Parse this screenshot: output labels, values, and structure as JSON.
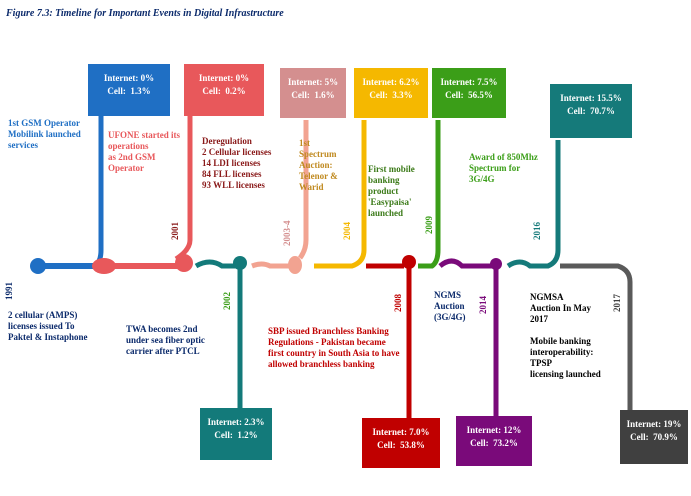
{
  "title": "Figure 7.3: Timeline for Important Events in Digital Infrastructure",
  "colors": {
    "c1991": "#1f6fc4",
    "c2001": "#e8585b",
    "c2002": "#137a7a",
    "c2003": "#f2a391",
    "c2004": "#f5b800",
    "c2008": "#c00000",
    "c2009": "#3b9e18",
    "c2014": "#7a0a7a",
    "c2016": "#157a7a",
    "c2017": "#5a5a5a",
    "cellbox2003": "#d48f8f",
    "cellbox2004": "#f5b800"
  },
  "years": {
    "y1991": "1991",
    "y2001": "2001",
    "y2002": "2002",
    "y2003": "2003-4",
    "y2004": "2004",
    "y2008": "2008",
    "y2009": "2009",
    "y2014": "2014",
    "y2016": "2016",
    "y2017": "2017"
  },
  "boxes": {
    "b1991": "Internet: 0%\nCell:  1.3%",
    "b2001": "Internet: 0%\nCell:  0.2%",
    "b2002": "Internet: 2.3%\nCell:  1.2%",
    "b2003": "Internet: 5%\nCell:  1.6%",
    "b2004": "Internet: 6.2%\nCell:  3.3%",
    "b2008": "Internet: 7.0%\nCell:  53.8%",
    "b2009": "Internet: 7.5%\nCell:  56.5%",
    "b2014": "Internet: 12%\nCell:  73.2%",
    "b2016": "Internet: 15.5%\nCell:  70.7%",
    "b2017": "Internet: 19%\nCell:  70.9%"
  },
  "events": {
    "e1991_top": "1st GSM Operator\nMobilink launched\nservices",
    "e1991_bottom": "2 cellular (AMPS)\nlicenses issued To\nPaktel & Instaphone",
    "e2001": "UFONE started its\noperations\nas 2nd GSM\nOperator",
    "e2002_top": "Deregulation\n2 Cellular licenses\n14 LDI licenses\n84 FLL licenses\n93 WLL licenses",
    "e2002_bottom": "TWA becomes 2nd\nunder sea fiber optic\ncarrier after PTCL",
    "e2003": "1st\nSpectrum\nAuction:\nTelenor &\nWarid",
    "e2004": "First mobile\nbanking\nproduct\n'Easypaisa'\nlaunched",
    "e2008": "SBP issued Branchless Banking\nRegulations - Pakistan became\nfirst country in South Asia to have\nallowed branchless banking",
    "e2009": "Award of 850Mhz\nSpectrum for\n3G/4G",
    "e2014": "NGMS\nAuction\n(3G/4G)",
    "e2016": "NGMSA\nAuction In May\n2017",
    "e2017": "Mobile banking\ninteroperability:\nTPSP\nlicensing launched"
  }
}
